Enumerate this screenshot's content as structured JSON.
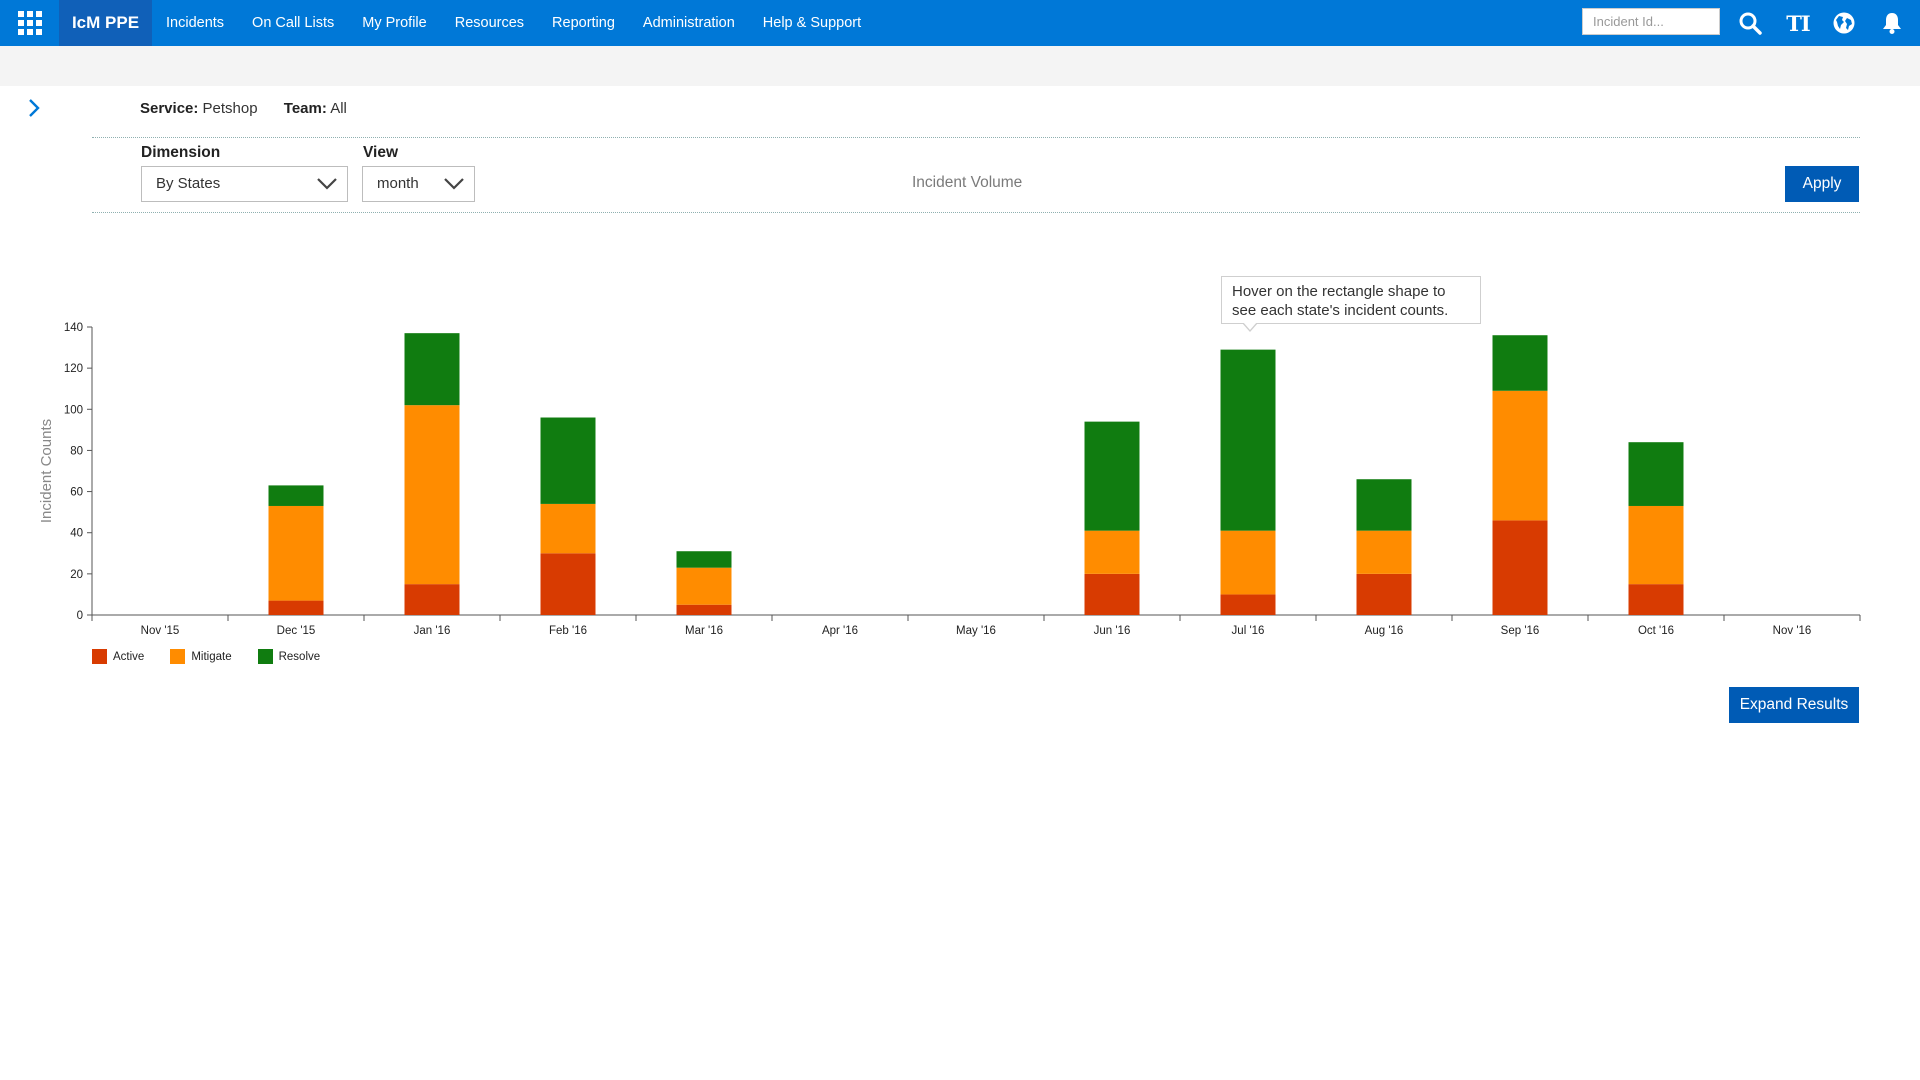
{
  "topbar": {
    "brand": "IcM PPE",
    "nav": [
      "Incidents",
      "On Call Lists",
      "My Profile",
      "Resources",
      "Reporting",
      "Administration",
      "Help & Support"
    ],
    "search_placeholder": "Incident Id...",
    "font_icon_text": "TI"
  },
  "context": {
    "service_label": "Service:",
    "service_value": "Petshop",
    "team_label": "Team:",
    "team_value": "All"
  },
  "filters": {
    "dimension_label": "Dimension",
    "dimension_value": "By States",
    "view_label": "View",
    "view_value": "month",
    "apply_label": "Apply"
  },
  "chart_title": "Incident Volume",
  "tooltip_text": "Hover on the rectangle shape to see each state's incident counts.",
  "expand_label": "Expand Results",
  "colors": {
    "active": "#d83b01",
    "mitigate": "#ff8c00",
    "resolve": "#107c10",
    "brand_blue": "#0078d7"
  },
  "chart_data": {
    "type": "bar",
    "stacked": true,
    "title": "Incident Volume",
    "xlabel": "",
    "ylabel": "Incident Counts",
    "ylim": [
      0,
      140
    ],
    "yticks": [
      0,
      20,
      40,
      60,
      80,
      100,
      120,
      140
    ],
    "categories": [
      "Nov '15",
      "Dec '15",
      "Jan '16",
      "Feb '16",
      "Mar '16",
      "Apr '16",
      "May '16",
      "Jun '16",
      "Jul '16",
      "Aug '16",
      "Sep '16",
      "Oct '16",
      "Nov '16"
    ],
    "series": [
      {
        "name": "Active",
        "color": "#d83b01",
        "values": [
          0,
          7,
          15,
          30,
          5,
          0,
          0,
          20,
          10,
          20,
          46,
          15,
          0
        ]
      },
      {
        "name": "Mitigate",
        "color": "#ff8c00",
        "values": [
          0,
          46,
          87,
          24,
          18,
          0,
          0,
          21,
          31,
          21,
          63,
          38,
          0
        ]
      },
      {
        "name": "Resolve",
        "color": "#107c10",
        "values": [
          0,
          10,
          35,
          42,
          8,
          0,
          0,
          53,
          88,
          25,
          27,
          31,
          0
        ]
      }
    ],
    "legend_position": "bottom-left",
    "grid": false
  }
}
